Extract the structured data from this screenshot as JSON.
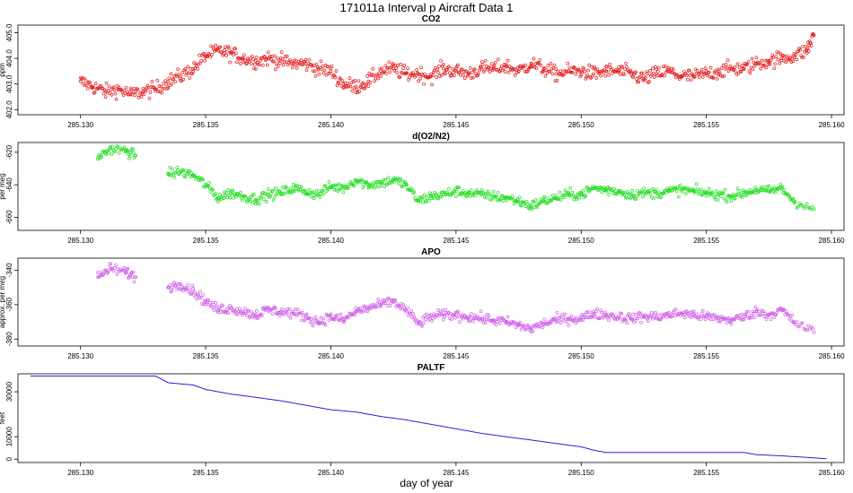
{
  "figure": {
    "title": "171011a   Interval p Aircraft Data 1",
    "xlabel": "day of year"
  },
  "chart_data": [
    {
      "type": "scatter",
      "title": "CO2",
      "xlabel": "",
      "ylabel": "ppm",
      "xlim": [
        285.1275,
        285.1605
      ],
      "ylim": [
        401.8,
        405.3
      ],
      "x_ticks": [
        "285.130",
        "285.135",
        "285.140",
        "285.145",
        "285.150",
        "285.155",
        "285.160"
      ],
      "x_tick_values": [
        285.13,
        285.135,
        285.14,
        285.145,
        285.15,
        285.155,
        285.16
      ],
      "y_ticks": [
        "402.0",
        "403.0",
        "404.0",
        "405.0"
      ],
      "y_tick_values": [
        402,
        403,
        404,
        405
      ],
      "color": "#e41a1c",
      "series": [
        {
          "name": "CO2",
          "x": [
            285.13,
            285.1305,
            285.131,
            285.1315,
            285.132,
            285.1325,
            285.133,
            285.1335,
            285.134,
            285.1345,
            285.135,
            285.1355,
            285.136,
            285.1365,
            285.137,
            285.1375,
            285.138,
            285.1385,
            285.139,
            285.1395,
            285.14,
            285.1405,
            285.141,
            285.1415,
            285.142,
            285.1425,
            285.143,
            285.1435,
            285.144,
            285.1445,
            285.145,
            285.1455,
            285.146,
            285.1465,
            285.147,
            285.1475,
            285.148,
            285.1485,
            285.149,
            285.1495,
            285.15,
            285.1505,
            285.151,
            285.1515,
            285.152,
            285.1525,
            285.153,
            285.1535,
            285.154,
            285.1545,
            285.155,
            285.1555,
            285.156,
            285.1565,
            285.157,
            285.1575,
            285.158,
            285.1585,
            285.159,
            285.1593
          ],
          "y": [
            403.1,
            402.9,
            402.7,
            402.8,
            402.6,
            402.7,
            402.8,
            403.1,
            403.3,
            403.6,
            404.1,
            404.3,
            404.2,
            404.0,
            403.9,
            404.0,
            403.9,
            403.8,
            403.8,
            403.6,
            403.5,
            403.0,
            402.9,
            403.1,
            403.5,
            403.6,
            403.4,
            403.4,
            403.3,
            403.6,
            403.5,
            403.4,
            403.6,
            403.6,
            403.7,
            403.5,
            403.8,
            403.6,
            403.4,
            403.5,
            403.5,
            403.4,
            403.5,
            403.5,
            403.4,
            403.2,
            403.4,
            403.5,
            403.3,
            403.3,
            403.4,
            403.5,
            403.6,
            403.6,
            403.8,
            403.9,
            404.0,
            404.1,
            404.3,
            404.9
          ]
        }
      ]
    },
    {
      "type": "scatter",
      "title": "d(O2/N2)",
      "xlabel": "",
      "ylabel": "per meg",
      "xlim": [
        285.1275,
        285.1605
      ],
      "ylim": [
        -668,
        -614
      ],
      "x_ticks": [
        "285.130",
        "285.135",
        "285.140",
        "285.145",
        "285.150",
        "285.155",
        "285.160"
      ],
      "x_tick_values": [
        285.13,
        285.135,
        285.14,
        285.145,
        285.15,
        285.155,
        285.16
      ],
      "y_ticks": [
        "-660",
        "-640",
        "-620"
      ],
      "y_tick_values": [
        -660,
        -640,
        -620
      ],
      "color": "#22dd22",
      "series": [
        {
          "name": "d(O2/N2)",
          "x": [
            285.1307,
            285.1312,
            285.1318,
            285.1322,
            285.1335,
            285.134,
            285.1345,
            285.135,
            285.1355,
            285.136,
            285.1365,
            285.137,
            285.1375,
            285.138,
            285.1385,
            285.139,
            285.1395,
            285.14,
            285.1405,
            285.141,
            285.1415,
            285.142,
            285.1425,
            285.143,
            285.1435,
            285.144,
            285.1445,
            285.145,
            285.1455,
            285.146,
            285.1465,
            285.147,
            285.1475,
            285.148,
            285.1485,
            285.149,
            285.1495,
            285.15,
            285.1505,
            285.151,
            285.1515,
            285.152,
            285.1525,
            285.153,
            285.1535,
            285.154,
            285.1545,
            285.155,
            285.1555,
            285.156,
            285.1565,
            285.157,
            285.1575,
            285.158,
            285.1585,
            285.1593
          ],
          "y": [
            -623,
            -618,
            -619,
            -622,
            -633,
            -632,
            -634,
            -640,
            -648,
            -645,
            -647,
            -649,
            -646,
            -645,
            -642,
            -644,
            -646,
            -641,
            -642,
            -637,
            -640,
            -639,
            -637,
            -640,
            -650,
            -647,
            -646,
            -644,
            -645,
            -646,
            -647,
            -648,
            -650,
            -653,
            -650,
            -648,
            -646,
            -646,
            -642,
            -643,
            -644,
            -646,
            -645,
            -645,
            -644,
            -643,
            -644,
            -645,
            -646,
            -647,
            -645,
            -643,
            -644,
            -642,
            -650,
            -655
          ]
        }
      ]
    },
    {
      "type": "scatter",
      "title": "APO",
      "xlabel": "",
      "ylabel": "approx. per meg",
      "xlim": [
        285.1275,
        285.1605
      ],
      "ylim": [
        -384,
        -333
      ],
      "x_ticks": [
        "285.130",
        "285.135",
        "285.140",
        "285.145",
        "285.150",
        "285.155",
        "285.160"
      ],
      "x_tick_values": [
        285.13,
        285.135,
        285.14,
        285.145,
        285.15,
        285.155,
        285.16
      ],
      "y_ticks": [
        "-380",
        "-360",
        "-340"
      ],
      "y_tick_values": [
        -380,
        -360,
        -340
      ],
      "color": "#d060e8",
      "series": [
        {
          "name": "APO",
          "x": [
            285.1307,
            285.1312,
            285.1318,
            285.1322,
            285.1335,
            285.134,
            285.1345,
            285.135,
            285.1355,
            285.136,
            285.1365,
            285.137,
            285.1375,
            285.138,
            285.1385,
            285.139,
            285.1395,
            285.14,
            285.1405,
            285.141,
            285.1415,
            285.142,
            285.1425,
            285.143,
            285.1435,
            285.144,
            285.1445,
            285.145,
            285.1455,
            285.146,
            285.1465,
            285.147,
            285.1475,
            285.148,
            285.1485,
            285.149,
            285.1495,
            285.15,
            285.1505,
            285.151,
            285.1515,
            285.152,
            285.1525,
            285.153,
            285.1535,
            285.154,
            285.1545,
            285.155,
            285.1555,
            285.156,
            285.1565,
            285.157,
            285.1575,
            285.158,
            285.1585,
            285.1593
          ],
          "y": [
            -344,
            -339,
            -341,
            -344,
            -350,
            -348,
            -352,
            -358,
            -363,
            -362,
            -364,
            -366,
            -363,
            -364,
            -365,
            -367,
            -370,
            -367,
            -369,
            -364,
            -362,
            -360,
            -358,
            -363,
            -371,
            -367,
            -366,
            -366,
            -367,
            -368,
            -369,
            -370,
            -372,
            -374,
            -371,
            -369,
            -368,
            -368,
            -365,
            -366,
            -367,
            -368,
            -367,
            -367,
            -366,
            -365,
            -366,
            -367,
            -368,
            -369,
            -367,
            -364,
            -366,
            -363,
            -370,
            -376
          ]
        }
      ]
    },
    {
      "type": "line",
      "title": "PALTF",
      "xlabel": "day of year",
      "ylabel": "feet",
      "xlim": [
        285.1275,
        285.1605
      ],
      "ylim": [
        -1500,
        38000
      ],
      "x_ticks": [
        "285.130",
        "285.135",
        "285.140",
        "285.145",
        "285.150",
        "285.155",
        "285.160"
      ],
      "x_tick_values": [
        285.13,
        285.135,
        285.14,
        285.145,
        285.15,
        285.155,
        285.16
      ],
      "y_ticks": [
        "0",
        "10000",
        "30000"
      ],
      "y_tick_values": [
        0,
        10000,
        30000
      ],
      "color": "#2222dd",
      "series": [
        {
          "name": "PALTF",
          "x": [
            285.128,
            285.129,
            285.13,
            285.131,
            285.132,
            285.133,
            285.1335,
            285.134,
            285.1345,
            285.135,
            285.136,
            285.137,
            285.138,
            285.139,
            285.14,
            285.141,
            285.142,
            285.143,
            285.144,
            285.145,
            285.146,
            285.147,
            285.148,
            285.149,
            285.15,
            285.1505,
            285.151,
            285.152,
            285.153,
            285.154,
            285.155,
            285.156,
            285.1565,
            285.157,
            285.158,
            285.159,
            285.1598
          ],
          "y": [
            37000,
            37000,
            37000,
            37000,
            37000,
            37000,
            34000,
            33500,
            33000,
            31000,
            29000,
            27500,
            26000,
            24000,
            22000,
            21000,
            19000,
            17500,
            15500,
            13500,
            11500,
            10000,
            8500,
            7000,
            5500,
            4000,
            3000,
            3000,
            3000,
            3000,
            3000,
            3000,
            3000,
            2000,
            1500,
            800,
            200
          ]
        }
      ]
    }
  ]
}
